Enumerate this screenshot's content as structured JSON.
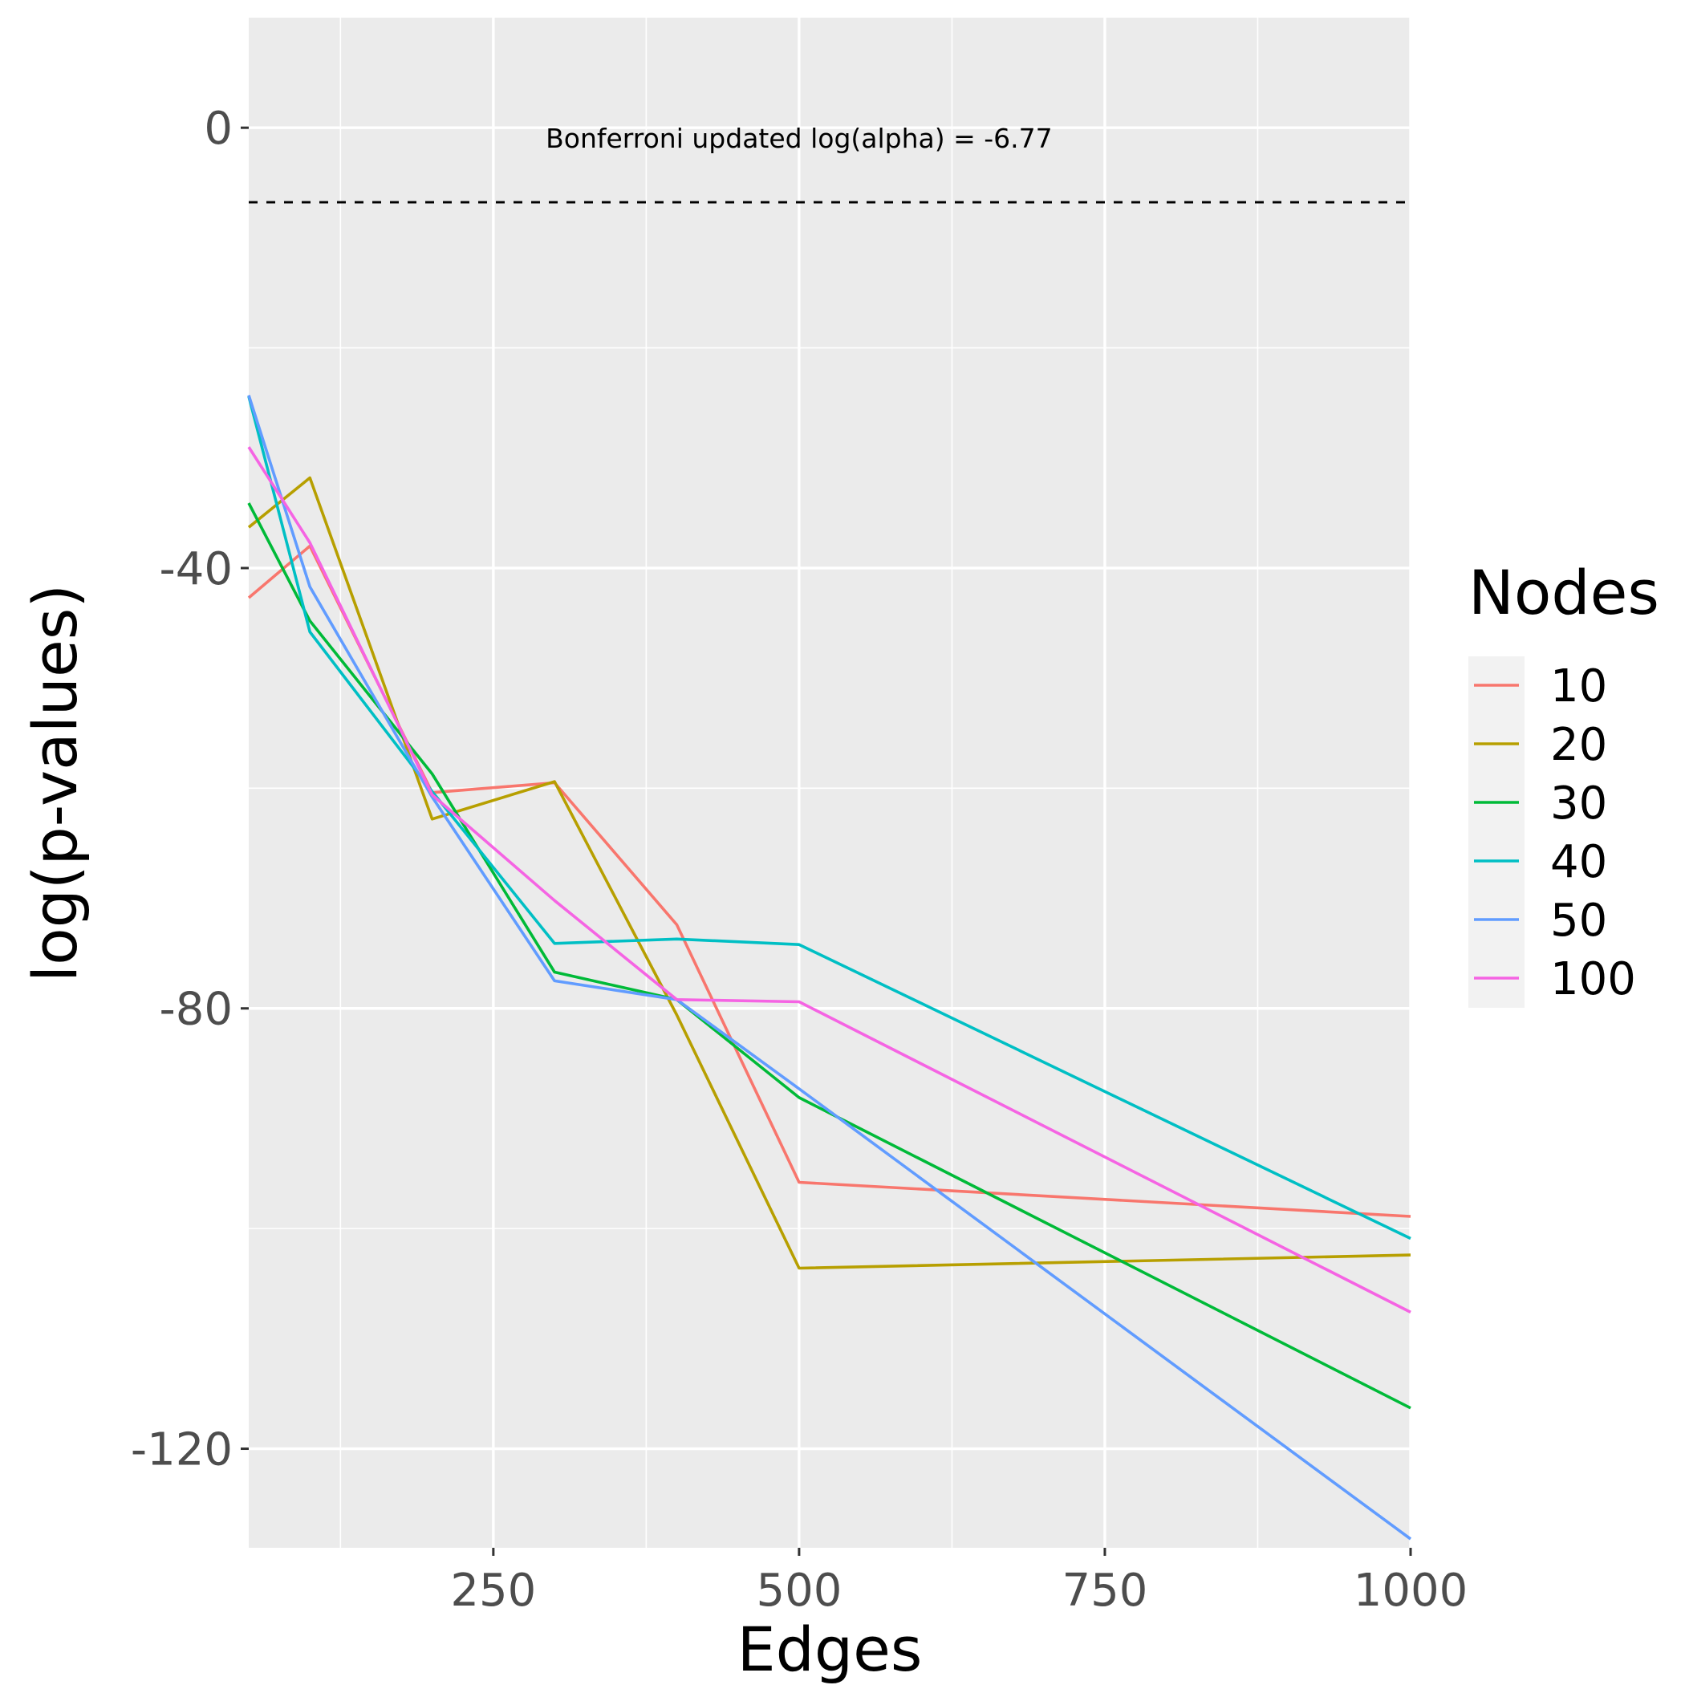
{
  "chart_data": {
    "type": "line",
    "xlabel": "Edges",
    "ylabel": "log(p-values)",
    "xlim": [
      50,
      1000
    ],
    "ylim": [
      -129,
      10
    ],
    "x_ticks": [
      250,
      500,
      750,
      1000
    ],
    "x_tick_labels": [
      "250",
      "500",
      "750",
      "1000"
    ],
    "y_ticks": [
      0,
      -40,
      -80,
      -120
    ],
    "y_tick_labels": [
      "0",
      "-40",
      "-80",
      "-120"
    ],
    "x": [
      50,
      100,
      200,
      300,
      400,
      500,
      1000
    ],
    "series": [
      {
        "name": "10",
        "color": "#F8766D",
        "values": [
          -42.7,
          -38.0,
          -60.4,
          -59.5,
          -72.4,
          -95.8,
          -98.9
        ]
      },
      {
        "name": "20",
        "color": "#B79F00",
        "values": [
          -36.3,
          -31.8,
          -62.8,
          -59.4,
          -80.6,
          -103.6,
          -102.4
        ]
      },
      {
        "name": "30",
        "color": "#00BA38",
        "values": [
          -34.1,
          -44.8,
          -58.7,
          -76.7,
          -79.2,
          -88.1,
          -116.3
        ]
      },
      {
        "name": "40",
        "color": "#00BFC4",
        "values": [
          -24.4,
          -45.8,
          -60.3,
          -74.1,
          -73.7,
          -74.2,
          -100.9
        ]
      },
      {
        "name": "50",
        "color": "#619CFF",
        "values": [
          -24.3,
          -41.7,
          -60.8,
          -77.5,
          -79.2,
          -87.3,
          -128.2
        ]
      },
      {
        "name": "100",
        "color": "#F564E3",
        "values": [
          -29.0,
          -37.7,
          -60.6,
          -70.2,
          -79.2,
          -79.4,
          -107.6
        ]
      }
    ],
    "hline": {
      "y": -6.77,
      "style": "dashed",
      "color": "#000000"
    },
    "annotation": {
      "text": "Bonferroni updated log(alpha) = -6.77",
      "x": 500,
      "y": -1.8
    },
    "legend": {
      "title": "Nodes",
      "position": "right"
    },
    "grid": true,
    "panel_background": "#EBEBEB",
    "gridline_color": "#FFFFFF"
  }
}
